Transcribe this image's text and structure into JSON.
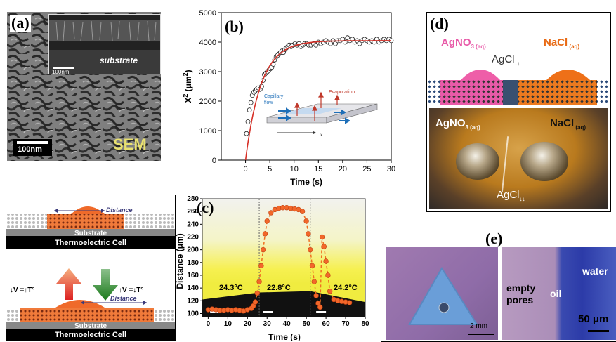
{
  "panels": {
    "a": {
      "label": "(a)",
      "inset_text": "substrate",
      "inset_scale": "100nm",
      "scale": "100nm",
      "watermark": "SEM"
    },
    "b": {
      "label": "(b)",
      "ylabel_main": "X",
      "ylabel_sup": "2",
      "ylabel_unit_open": " (μm",
      "ylabel_unit_sup": "2",
      "ylabel_unit_close": ")",
      "xlabel": "Time (s)",
      "inset": {
        "capillary": "Capillary",
        "flow": "flow",
        "evaporation": "Evaporation",
        "x": "x"
      }
    },
    "c": {
      "label": "(c)",
      "ylabel": "Distance (μm)",
      "xlabel": "Time (s)",
      "temps": [
        "24.3°C",
        "22.8°C",
        "24.2°C"
      ]
    },
    "d": {
      "label": "(d)",
      "left": "AgNO",
      "left_sub": "3 (aq)",
      "right": "NaCl",
      "right_sub": " (aq)",
      "middle": "AgCl",
      "middle_sub": "↓↓",
      "photo_left": "AgNO",
      "photo_left_sub": "3 (aq)",
      "photo_right": "NaCl",
      "photo_right_sub": " (aq)",
      "photo_middle": "AgCl",
      "photo_middle_sub": "↓↓"
    },
    "e": {
      "label": "(e)",
      "scale_left": "2 mm",
      "empty_pores": "empty pores",
      "oil": "oil",
      "water": "water",
      "scale_right": "50 μm"
    },
    "thermo": {
      "distance_top": "Distance",
      "substrate_top": "Substrate",
      "cell_top": "Thermoelectric Cell",
      "eq_left": "↓V =↑T°",
      "eq_right": "↑V =↓T°",
      "distance_bottom": "Distance",
      "substrate_bottom": "Substrate",
      "cell_bottom": "Thermoelectric Cell"
    }
  },
  "chart_data": [
    {
      "type": "scatter",
      "title": "",
      "xlabel": "Time (s)",
      "ylabel": "X2 (μm2)",
      "xlim": [
        -5,
        30
      ],
      "ylim": [
        0,
        5000
      ],
      "xticks": [
        0,
        5,
        10,
        15,
        20,
        25,
        30
      ],
      "yticks": [
        0,
        1000,
        2000,
        3000,
        4000,
        5000
      ],
      "series": [
        {
          "kind": "markers",
          "x": [
            0.2,
            0.5,
            0.8,
            1.1,
            1.4,
            1.7,
            2.0,
            2.3,
            2.6,
            3.0,
            3.3,
            3.6,
            3.9,
            4.2,
            4.5,
            4.8,
            5.1,
            5.4,
            5.7,
            6.0,
            6.3,
            6.6,
            6.9,
            7.2,
            7.5,
            7.8,
            8.1,
            8.4,
            8.7,
            9.0,
            9.4,
            9.8,
            10.2,
            10.6,
            11.0,
            11.4,
            11.8,
            12.2,
            12.6,
            13.0,
            13.5,
            14.0,
            14.5,
            15.0,
            15.5,
            16.0,
            16.5,
            17.0,
            17.5,
            18.0,
            18.5,
            19.0,
            19.5,
            20.0,
            20.5,
            21.0,
            21.5,
            22.0,
            22.5,
            23.0,
            23.5,
            24.0,
            24.5,
            25.0,
            25.5,
            26.0,
            26.5,
            27.0,
            27.5,
            28.0,
            28.5,
            29.0,
            29.5,
            30.0
          ],
          "y": [
            900,
            1300,
            1700,
            1950,
            2200,
            2300,
            2350,
            2400,
            2450,
            2400,
            2500,
            2700,
            2900,
            2950,
            3000,
            3050,
            3100,
            3150,
            3250,
            3400,
            3500,
            3550,
            3600,
            3650,
            3700,
            3650,
            3750,
            3800,
            3850,
            3900,
            3850,
            3900,
            3950,
            3900,
            3950,
            3850,
            3900,
            3950,
            3950,
            3900,
            3900,
            3950,
            3900,
            4000,
            3950,
            4000,
            4050,
            4000,
            3950,
            4050,
            3950,
            4050,
            4050,
            4100,
            4000,
            4150,
            4050,
            4100,
            4000,
            4050,
            3950,
            4050,
            4100,
            4050,
            4000,
            4050,
            4000,
            4100,
            4000,
            4050,
            4100,
            4050,
            4100,
            4050
          ]
        },
        {
          "kind": "fit",
          "x": [
            0,
            30
          ],
          "y": [
            0,
            4050
          ]
        }
      ]
    },
    {
      "type": "scatter",
      "title": "",
      "xlabel": "Time (s)",
      "ylabel": "Distance (μm)",
      "xlim": [
        -3,
        80
      ],
      "ylim": [
        95,
        280
      ],
      "xticks": [
        0,
        10,
        20,
        30,
        40,
        50,
        60,
        70,
        80
      ],
      "yticks": [
        100,
        120,
        140,
        160,
        180,
        200,
        220,
        240,
        260,
        280
      ],
      "series": [
        {
          "kind": "markers",
          "x": [
            0,
            2,
            4,
            6,
            8,
            10,
            12,
            14,
            16,
            18,
            20,
            22,
            23,
            24,
            25,
            26,
            27,
            28,
            29,
            30,
            32,
            34,
            36,
            38,
            40,
            42,
            44,
            46,
            48,
            50,
            51,
            52,
            53,
            54,
            55,
            56,
            57,
            58,
            59,
            60,
            61,
            62,
            64,
            66,
            68,
            70,
            72
          ],
          "y": [
            106,
            107,
            106,
            105,
            105,
            106,
            105,
            106,
            105,
            104,
            106,
            108,
            112,
            118,
            132,
            150,
            175,
            200,
            225,
            245,
            258,
            263,
            265,
            266,
            266,
            265,
            264,
            263,
            260,
            245,
            225,
            200,
            175,
            150,
            128,
            116,
            110,
            220,
            205,
            182,
            160,
            135,
            122,
            120,
            119,
            118,
            117
          ]
        }
      ]
    }
  ]
}
